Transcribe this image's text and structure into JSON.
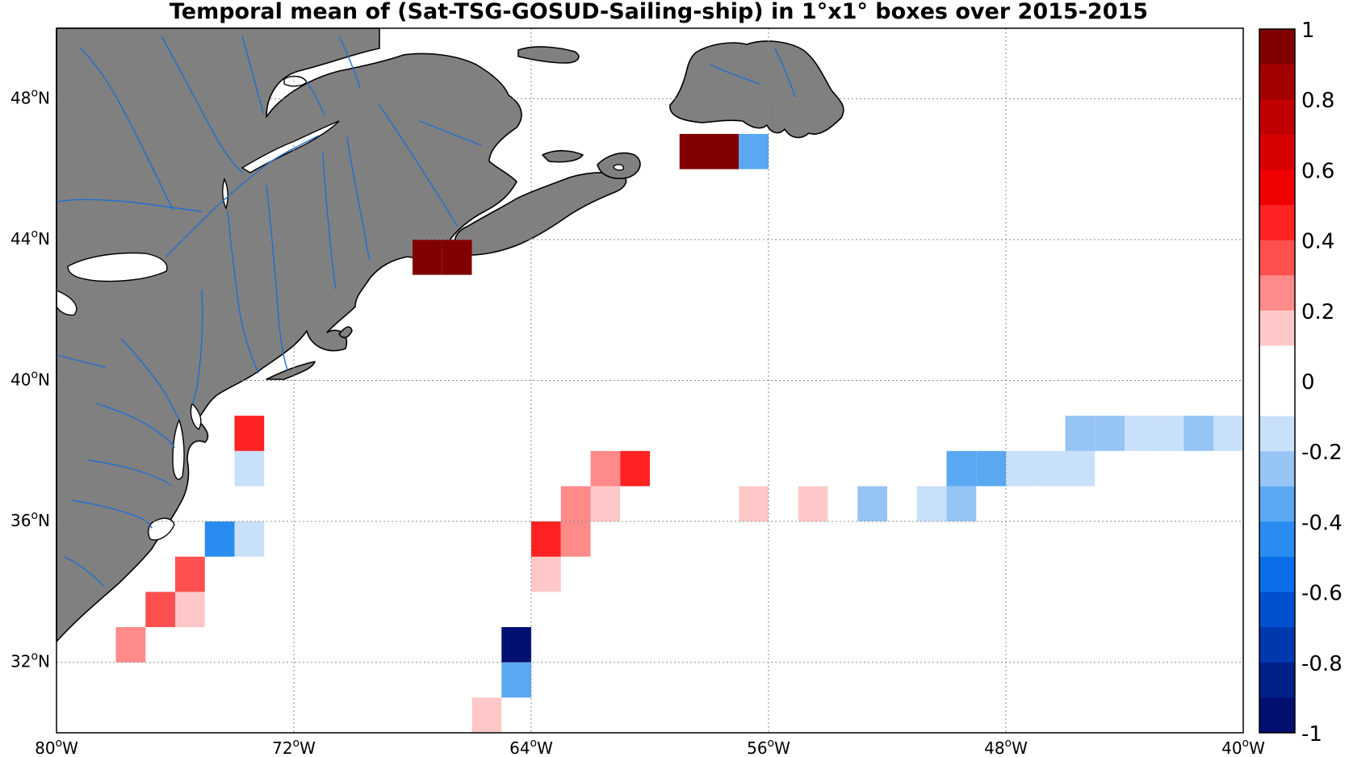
{
  "title": "Temporal mean of (Sat-TSG-GOSUD-Sailing-ship) in 1°x1° boxes over 2015-2015",
  "map": {
    "lon_range": [
      -80,
      -40
    ],
    "lat_range": [
      30,
      50
    ],
    "x_ticks": [
      {
        "value": -80,
        "label": "80",
        "suffix": "W"
      },
      {
        "value": -72,
        "label": "72",
        "suffix": "W"
      },
      {
        "value": -64,
        "label": "64",
        "suffix": "W"
      },
      {
        "value": -56,
        "label": "56",
        "suffix": "W"
      },
      {
        "value": -48,
        "label": "48",
        "suffix": "W"
      },
      {
        "value": -40,
        "label": "40",
        "suffix": "W"
      }
    ],
    "y_ticks": [
      {
        "value": 32,
        "label": "32",
        "suffix": "N"
      },
      {
        "value": 36,
        "label": "36",
        "suffix": "N"
      },
      {
        "value": 40,
        "label": "40",
        "suffix": "N"
      },
      {
        "value": 44,
        "label": "44",
        "suffix": "N"
      },
      {
        "value": 48,
        "label": "48",
        "suffix": "N"
      }
    ],
    "grid": true,
    "land_color": "#808080",
    "river_color": "#1f6fd0"
  },
  "colorbar": {
    "range": [
      -1,
      1
    ],
    "ticks": [
      "1",
      "0.8",
      "0.6",
      "0.4",
      "0.2",
      "0",
      "-0.2",
      "-0.4",
      "-0.6",
      "-0.8",
      "-1"
    ],
    "colors_top_to_bottom": [
      "#800000",
      "#a30000",
      "#c00000",
      "#d90000",
      "#f00000",
      "#ff2222",
      "#ff5050",
      "#ff8a8a",
      "#ffc8c8",
      "#ffffff",
      "#ffffff",
      "#c8e0fa",
      "#96c4f5",
      "#5aa8f2",
      "#2a8cf0",
      "#0a6ee8",
      "#0050d0",
      "#0038b0",
      "#00208a",
      "#000f70"
    ]
  },
  "chart_data": {
    "type": "heatmap",
    "title": "Temporal mean of (Sat-TSG-GOSUD-Sailing-ship) in 1°x1° boxes over 2015-2015",
    "xlabel": "",
    "ylabel": "",
    "cell_size_deg": 1,
    "color_range": [
      -1,
      1
    ],
    "cells": [
      {
        "lon": -77.5,
        "lat": 32.5,
        "value": 0.3
      },
      {
        "lon": -76.5,
        "lat": 33.5,
        "value": 0.4
      },
      {
        "lon": -75.5,
        "lat": 33.5,
        "value": 0.2
      },
      {
        "lon": -75.5,
        "lat": 34.5,
        "value": 0.4
      },
      {
        "lon": -74.5,
        "lat": 35.5,
        "value": -0.45
      },
      {
        "lon": -73.5,
        "lat": 35.5,
        "value": -0.15
      },
      {
        "lon": -73.5,
        "lat": 37.5,
        "value": -0.15
      },
      {
        "lon": -73.5,
        "lat": 38.5,
        "value": 0.5
      },
      {
        "lon": -65.5,
        "lat": 30.5,
        "value": 0.2
      },
      {
        "lon": -64.5,
        "lat": 31.5,
        "value": -0.3
      },
      {
        "lon": -64.5,
        "lat": 32.5,
        "value": -0.9
      },
      {
        "lon": -63.5,
        "lat": 34.5,
        "value": 0.2
      },
      {
        "lon": -63.5,
        "lat": 35.5,
        "value": 0.45
      },
      {
        "lon": -62.5,
        "lat": 35.5,
        "value": 0.3
      },
      {
        "lon": -62.5,
        "lat": 36.5,
        "value": 0.3
      },
      {
        "lon": -61.5,
        "lat": 36.5,
        "value": 0.2
      },
      {
        "lon": -61.5,
        "lat": 37.5,
        "value": 0.3
      },
      {
        "lon": -60.5,
        "lat": 37.5,
        "value": 0.45
      },
      {
        "lon": -67.5,
        "lat": 43.5,
        "value": 1.0
      },
      {
        "lon": -66.5,
        "lat": 43.5,
        "value": 1.0
      },
      {
        "lon": -58.5,
        "lat": 46.5,
        "value": 1.0
      },
      {
        "lon": -57.5,
        "lat": 46.5,
        "value": 1.0
      },
      {
        "lon": -56.5,
        "lat": 46.5,
        "value": -0.35
      },
      {
        "lon": -56.5,
        "lat": 36.5,
        "value": 0.2
      },
      {
        "lon": -54.5,
        "lat": 36.5,
        "value": 0.2
      },
      {
        "lon": -52.5,
        "lat": 36.5,
        "value": -0.25
      },
      {
        "lon": -50.5,
        "lat": 36.5,
        "value": -0.15
      },
      {
        "lon": -49.5,
        "lat": 36.5,
        "value": -0.25
      },
      {
        "lon": -49.5,
        "lat": 37.5,
        "value": -0.3
      },
      {
        "lon": -48.5,
        "lat": 37.5,
        "value": -0.3
      },
      {
        "lon": -47.5,
        "lat": 37.5,
        "value": -0.15
      },
      {
        "lon": -46.5,
        "lat": 37.5,
        "value": -0.15
      },
      {
        "lon": -45.5,
        "lat": 37.5,
        "value": -0.15
      },
      {
        "lon": -45.5,
        "lat": 38.5,
        "value": -0.25
      },
      {
        "lon": -44.5,
        "lat": 38.5,
        "value": -0.25
      },
      {
        "lon": -43.5,
        "lat": 38.5,
        "value": -0.15
      },
      {
        "lon": -42.5,
        "lat": 38.5,
        "value": -0.15
      },
      {
        "lon": -41.5,
        "lat": 38.5,
        "value": -0.25
      },
      {
        "lon": -40.5,
        "lat": 38.5,
        "value": -0.15
      }
    ]
  }
}
